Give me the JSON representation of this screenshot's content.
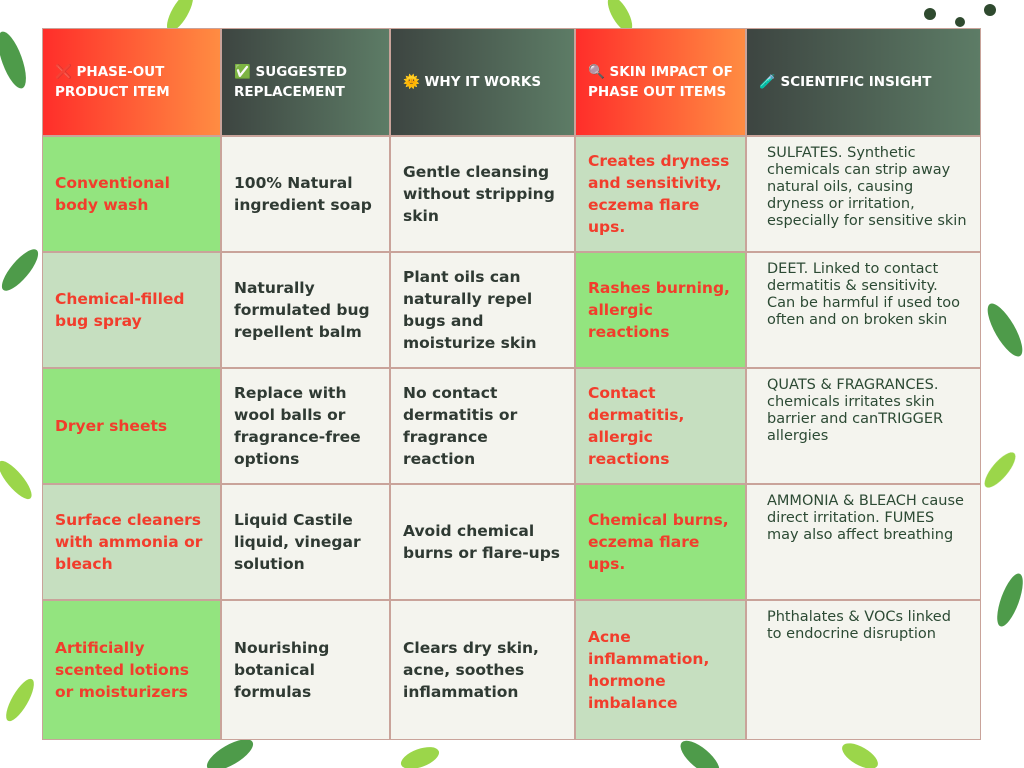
{
  "table": {
    "header": [
      "❌ PHASE-OUT PRODUCT ITEM",
      "✅ SUGGESTED REPLACEMENT",
      "🌞 WHY IT WORKS",
      "🔍 SKIN IMPACT OF PHASE OUT ITEMS",
      "🧪 SCIENTIFIC INSIGHT"
    ],
    "rows": [
      [
        "Conventional body wash",
        "100% Natural ingredient soap",
        "Gentle cleansing without stripping skin",
        "Creates dryness and sensitivity, eczema flare ups.",
        "SULFATES. Synthetic chemicals can strip away natural oils, causing dryness  or irritation, especially for sensitive skin"
      ],
      [
        "Chemical-filled bug spray",
        "Naturally formulated bug repellent balm",
        "Plant oils can naturally repel bugs and moisturize skin",
        "Rashes burning, allergic reactions",
        "DEET. Linked to contact dermatitis & sensitivity. Can be harmful if used too often and on broken skin"
      ],
      [
        "Dryer sheets",
        "Replace with wool balls or fragrance-free options",
        "No contact dermatitis or fragrance reaction",
        "Contact dermatitis, allergic reactions",
        "QUATS & FRAGRANCES. chemicals irritates skin barrier and canTRIGGER allergies"
      ],
      [
        "Surface cleaners with ammonia or bleach",
        "Liquid Castile liquid, vinegar solution",
        "Avoid chemical burns or flare-ups",
        "Chemical burns, eczema flare ups.",
        "AMMONIA  & BLEACH cause direct irritation. FUMES may also affect breathing"
      ],
      [
        "Artificially scented lotions or moisturizers",
        "Nourishing botanical formulas",
        "Clears dry skin, acne, soothes inflammation",
        "Acne inflammation, hormone imbalance",
        "Phthalates & VOCs linked to endocrine disruption"
      ]
    ]
  }
}
